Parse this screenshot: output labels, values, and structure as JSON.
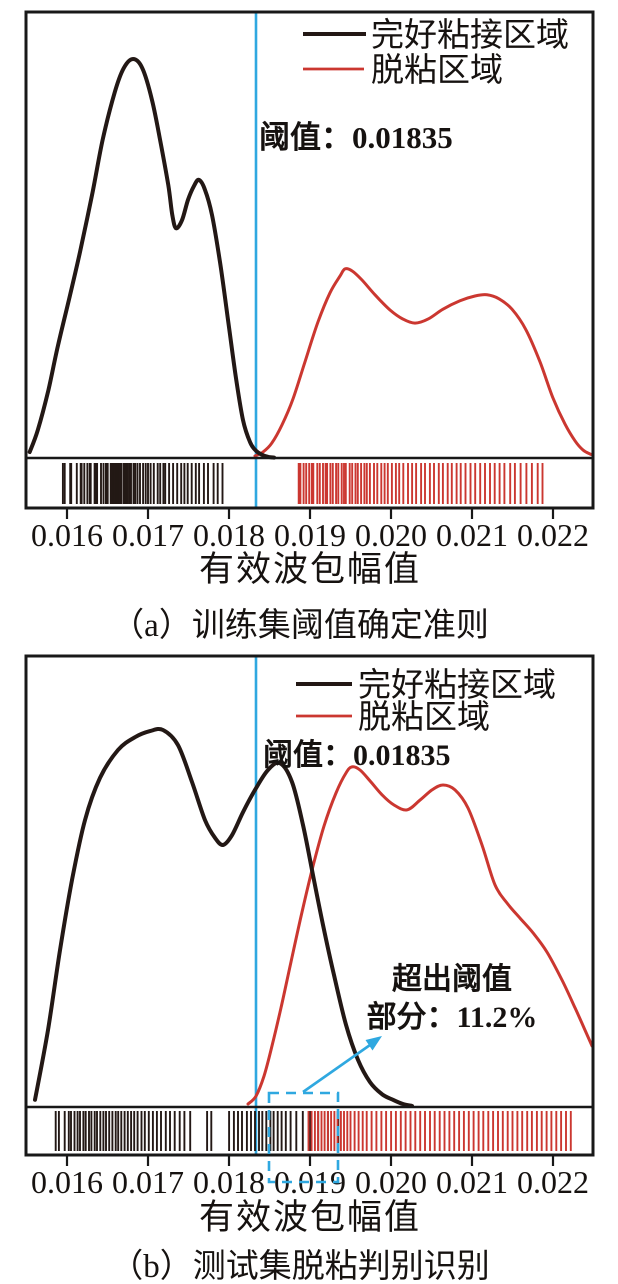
{
  "figure": {
    "colors": {
      "bonded": "#231815",
      "debonded": "#cb3730",
      "threshold": "#2fa8e0",
      "axis": "#181818"
    },
    "panels": [
      {
        "caption": "（a）训练集阈值确定准则",
        "xlabel": "有效波包幅值",
        "threshold_label": "阈值：0.01835",
        "legend": [
          {
            "label": "完好粘接区域"
          },
          {
            "label": "脱粘区域"
          }
        ]
      },
      {
        "caption": "（b）测试集脱粘判别识别",
        "xlabel": "有效波包幅值",
        "threshold_label": "阈值：0.01835",
        "legend": [
          {
            "label": "完好粘接区域"
          },
          {
            "label": "脱粘区域"
          }
        ],
        "annotation": {
          "line1": "超出阈值",
          "line2": "部分：11.2%"
        }
      }
    ]
  },
  "chart_data": [
    {
      "type": "kde+rug",
      "title": "训练集阈值确定准则",
      "xlabel": "有效波包幅值",
      "threshold": 0.01835,
      "x_ticks": [
        0.016,
        0.017,
        0.018,
        0.019,
        0.02,
        0.021,
        0.022
      ],
      "x_tick_labels": [
        "0.016",
        "0.017",
        "0.018",
        "0.019",
        "0.020",
        "0.021",
        "0.022"
      ],
      "x_range": [
        0.015494,
        0.022494
      ],
      "legend_position": "top-right",
      "series": [
        {
          "name": "完好粘接区域",
          "color_key": "bonded",
          "curve": [
            [
              0.01554,
              0.015
            ],
            [
              0.01564,
              0.07
            ],
            [
              0.01577,
              0.17
            ],
            [
              0.01589,
              0.283
            ],
            [
              0.01604,
              0.41
            ],
            [
              0.01616,
              0.516
            ],
            [
              0.01631,
              0.66
            ],
            [
              0.01644,
              0.797
            ],
            [
              0.01659,
              0.917
            ],
            [
              0.0167,
              0.977
            ],
            [
              0.016815,
              1.0
            ],
            [
              0.01693,
              0.977
            ],
            [
              0.01705,
              0.897
            ],
            [
              0.01715,
              0.797
            ],
            [
              0.01725,
              0.684
            ],
            [
              0.0173,
              0.609
            ],
            [
              0.017346,
              0.576
            ],
            [
              0.01742,
              0.596
            ],
            [
              0.017494,
              0.647
            ],
            [
              0.017568,
              0.682
            ],
            [
              0.01763,
              0.697
            ],
            [
              0.017704,
              0.672
            ],
            [
              0.01779,
              0.609
            ],
            [
              0.017889,
              0.491
            ],
            [
              0.017988,
              0.346
            ],
            [
              0.018086,
              0.2
            ],
            [
              0.018173,
              0.095
            ],
            [
              0.018259,
              0.04
            ],
            [
              0.018333,
              0.018
            ],
            [
              0.018407,
              0.008
            ],
            [
              0.018481,
              0.003
            ],
            [
              0.018556,
              0.001
            ]
          ],
          "rug": [
            0.01595,
            0.015972,
            0.01604,
            0.016052,
            0.016121,
            0.016169,
            0.01618,
            0.016214,
            0.016252,
            0.016281,
            0.016292,
            0.016341,
            0.01636,
            0.016372,
            0.01642,
            0.016451,
            0.01648,
            0.016492,
            0.016503,
            0.01654,
            0.016551,
            0.016572,
            0.016591,
            0.01661,
            0.016622,
            0.016641,
            0.016652,
            0.016671,
            0.0167,
            0.016721,
            0.016732,
            0.016751,
            0.016772,
            0.01679,
            0.016821,
            0.016842,
            0.01687,
            0.016901,
            0.01694,
            0.016972,
            0.017,
            0.017032,
            0.017071,
            0.01712,
            0.017151,
            0.01719,
            0.017212,
            0.01726,
            0.01731,
            0.01736,
            0.01741,
            0.01745,
            0.01749,
            0.01754,
            0.01759,
            0.017631,
            0.01769,
            0.017741,
            0.01781,
            0.01786,
            0.01792
          ]
        },
        {
          "name": "脱粘区域",
          "color_key": "debonded",
          "curve": [
            [
              0.018321,
              0.005
            ],
            [
              0.01842,
              0.015
            ],
            [
              0.018531,
              0.038
            ],
            [
              0.018654,
              0.083
            ],
            [
              0.01879,
              0.148
            ],
            [
              0.018938,
              0.241
            ],
            [
              0.019099,
              0.341
            ],
            [
              0.019247,
              0.414
            ],
            [
              0.01937,
              0.456
            ],
            [
              0.019432,
              0.474
            ],
            [
              0.019519,
              0.469
            ],
            [
              0.019642,
              0.446
            ],
            [
              0.019802,
              0.409
            ],
            [
              0.019988,
              0.371
            ],
            [
              0.020148,
              0.348
            ],
            [
              0.020296,
              0.338
            ],
            [
              0.020457,
              0.348
            ],
            [
              0.020642,
              0.373
            ],
            [
              0.020852,
              0.394
            ],
            [
              0.021037,
              0.406
            ],
            [
              0.021185,
              0.409
            ],
            [
              0.021333,
              0.399
            ],
            [
              0.021494,
              0.373
            ],
            [
              0.021667,
              0.321
            ],
            [
              0.02184,
              0.241
            ],
            [
              0.022,
              0.15
            ],
            [
              0.022148,
              0.085
            ],
            [
              0.022272,
              0.043
            ],
            [
              0.02237,
              0.02
            ],
            [
              0.022457,
              0.01
            ],
            [
              0.022494,
              0.008
            ]
          ],
          "rug": [
            0.018861,
            0.018882,
            0.018921,
            0.018953,
            0.01899,
            0.019022,
            0.019041,
            0.01909,
            0.019121,
            0.01916,
            0.019192,
            0.019211,
            0.019252,
            0.019281,
            0.019322,
            0.01935,
            0.019391,
            0.01942,
            0.019442,
            0.01949,
            0.019521,
            0.019562,
            0.01959,
            0.019631,
            0.019672,
            0.019701,
            0.01974,
            0.01979,
            0.019831,
            0.01988,
            0.019921,
            0.01996,
            0.020011,
            0.02006,
            0.020101,
            0.020152,
            0.02021,
            0.020261,
            0.02031,
            0.020372,
            0.02042,
            0.02048,
            0.020531,
            0.02059,
            0.020641,
            0.0207,
            0.020751,
            0.02081,
            0.020861,
            0.02092,
            0.020981,
            0.02104,
            0.021101,
            0.02116,
            0.021222,
            0.02128,
            0.021341,
            0.0214,
            0.021471,
            0.02153,
            0.0216,
            0.021671,
            0.02174,
            0.021811,
            0.02187
          ]
        }
      ]
    },
    {
      "type": "kde+rug",
      "title": "测试集脱粘判别识别",
      "xlabel": "有效波包幅值",
      "threshold": 0.01835,
      "exceed_threshold_pct": 11.2,
      "x_ticks": [
        0.016,
        0.017,
        0.018,
        0.019,
        0.02,
        0.021,
        0.022
      ],
      "x_tick_labels": [
        "0.016",
        "0.017",
        "0.018",
        "0.019",
        "0.020",
        "0.021",
        "0.022"
      ],
      "x_range": [
        0.015494,
        0.022494
      ],
      "legend_position": "top-right",
      "highlight_box_x_range": [
        0.018494,
        0.019346
      ],
      "series": [
        {
          "name": "完好粘接区域",
          "color_key": "bonded",
          "curve": [
            [
              0.015605,
              0.019
            ],
            [
              0.015765,
              0.204
            ],
            [
              0.015914,
              0.416
            ],
            [
              0.016062,
              0.602
            ],
            [
              0.016222,
              0.761
            ],
            [
              0.016407,
              0.873
            ],
            [
              0.01663,
              0.947
            ],
            [
              0.01684,
              0.981
            ],
            [
              0.017025,
              0.997
            ],
            [
              0.017185,
              1.0
            ],
            [
              0.01737,
              0.96
            ],
            [
              0.017543,
              0.862
            ],
            [
              0.017704,
              0.761
            ],
            [
              0.017827,
              0.714
            ],
            [
              0.017926,
              0.695
            ],
            [
              0.018037,
              0.721
            ],
            [
              0.018173,
              0.782
            ],
            [
              0.018321,
              0.841
            ],
            [
              0.018481,
              0.894
            ],
            [
              0.01863,
              0.912
            ],
            [
              0.018778,
              0.862
            ],
            [
              0.018914,
              0.748
            ],
            [
              0.019037,
              0.615
            ],
            [
              0.01916,
              0.483
            ],
            [
              0.019296,
              0.35
            ],
            [
              0.019444,
              0.218
            ],
            [
              0.019593,
              0.125
            ],
            [
              0.019741,
              0.066
            ],
            [
              0.019889,
              0.034
            ],
            [
              0.020025,
              0.019
            ],
            [
              0.020148,
              0.008
            ],
            [
              0.020259,
              0.003
            ]
          ],
          "rug": [
            0.01586,
            0.0159,
            0.015971,
            0.016022,
            0.01605,
            0.016092,
            0.016131,
            0.01616,
            0.016202,
            0.016231,
            0.016272,
            0.016301,
            0.016342,
            0.01637,
            0.016411,
            0.01645,
            0.016482,
            0.016521,
            0.01656,
            0.016601,
            0.016632,
            0.01667,
            0.016711,
            0.01675,
            0.016791,
            0.01683,
            0.016871,
            0.01692,
            0.016961,
            0.01701,
            0.017061,
            0.01711,
            0.017161,
            0.01722,
            0.017271,
            0.01733,
            0.017391,
            0.01745,
            0.017521,
            0.01773,
            0.017781,
            0.018001,
            0.01806,
            0.018111,
            0.01816,
            0.018221,
            0.018272,
            0.018321,
            0.01837,
            0.018411,
            0.01846,
            0.018511,
            0.01855,
            0.018601,
            0.01865,
            0.018701,
            0.018761,
            0.018831,
            0.018911,
            0.019001,
            0.019101,
            0.019221,
            0.01935
          ]
        },
        {
          "name": "脱粘区域",
          "color_key": "debonded",
          "curve": [
            [
              0.018235,
              0.008
            ],
            [
              0.018333,
              0.029
            ],
            [
              0.018432,
              0.082
            ],
            [
              0.018531,
              0.162
            ],
            [
              0.018642,
              0.263
            ],
            [
              0.018765,
              0.385
            ],
            [
              0.018901,
              0.517
            ],
            [
              0.019037,
              0.639
            ],
            [
              0.019173,
              0.745
            ],
            [
              0.019321,
              0.833
            ],
            [
              0.019444,
              0.886
            ],
            [
              0.019519,
              0.902
            ],
            [
              0.019617,
              0.894
            ],
            [
              0.019741,
              0.865
            ],
            [
              0.019889,
              0.828
            ],
            [
              0.020037,
              0.801
            ],
            [
              0.020198,
              0.788
            ],
            [
              0.020358,
              0.814
            ],
            [
              0.020506,
              0.841
            ],
            [
              0.020642,
              0.854
            ],
            [
              0.02079,
              0.841
            ],
            [
              0.020951,
              0.793
            ],
            [
              0.021123,
              0.695
            ],
            [
              0.021284,
              0.589
            ],
            [
              0.021432,
              0.541
            ],
            [
              0.021593,
              0.501
            ],
            [
              0.021753,
              0.462
            ],
            [
              0.021926,
              0.411
            ],
            [
              0.022111,
              0.337
            ],
            [
              0.022272,
              0.263
            ],
            [
              0.022395,
              0.204
            ],
            [
              0.022481,
              0.162
            ]
          ],
          "rug": [
            0.018981,
            0.01902,
            0.019061,
            0.0191,
            0.019142,
            0.01918,
            0.019221,
            0.01926,
            0.019301,
            0.01934,
            0.019381,
            0.01942,
            0.019461,
            0.0195,
            0.019551,
            0.0196,
            0.019651,
            0.0197,
            0.019761,
            0.01982,
            0.019881,
            0.01994,
            0.020001,
            0.02006,
            0.020121,
            0.02018,
            0.020241,
            0.0203,
            0.020361,
            0.02042,
            0.020481,
            0.02054,
            0.020601,
            0.02066,
            0.020721,
            0.02078,
            0.020841,
            0.0209,
            0.020961,
            0.02102,
            0.021081,
            0.02114,
            0.021201,
            0.02126,
            0.021321,
            0.02138,
            0.021441,
            0.0215,
            0.021561,
            0.02162,
            0.021681,
            0.02174,
            0.021801,
            0.02186,
            0.021921,
            0.02198,
            0.022041,
            0.0221,
            0.022161,
            0.02222
          ]
        }
      ]
    }
  ]
}
